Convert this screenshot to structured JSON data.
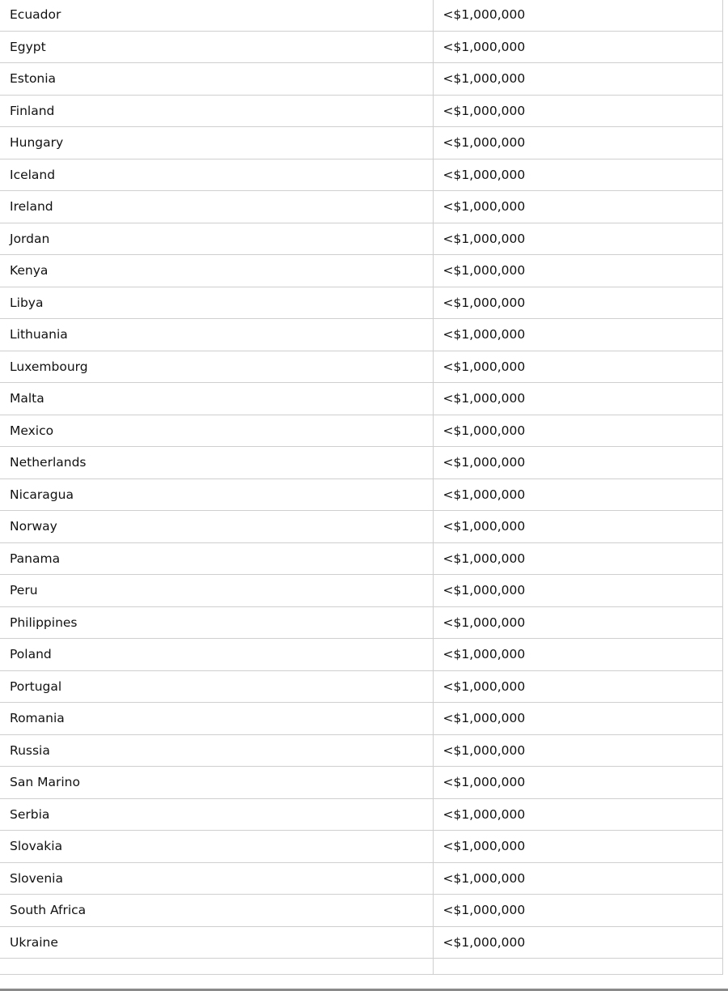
{
  "table": {
    "rows": [
      {
        "country": "Ecuador",
        "value": "<$1,000,000"
      },
      {
        "country": "Egypt",
        "value": "<$1,000,000"
      },
      {
        "country": "Estonia",
        "value": "<$1,000,000"
      },
      {
        "country": "Finland",
        "value": "<$1,000,000"
      },
      {
        "country": "Hungary",
        "value": "<$1,000,000"
      },
      {
        "country": "Iceland",
        "value": "<$1,000,000"
      },
      {
        "country": "Ireland",
        "value": "<$1,000,000"
      },
      {
        "country": "Jordan",
        "value": "<$1,000,000"
      },
      {
        "country": "Kenya",
        "value": "<$1,000,000"
      },
      {
        "country": "Libya",
        "value": "<$1,000,000"
      },
      {
        "country": "Lithuania",
        "value": "<$1,000,000"
      },
      {
        "country": "Luxembourg",
        "value": "<$1,000,000"
      },
      {
        "country": "Malta",
        "value": "<$1,000,000"
      },
      {
        "country": "Mexico",
        "value": "<$1,000,000"
      },
      {
        "country": "Netherlands",
        "value": "<$1,000,000"
      },
      {
        "country": "Nicaragua",
        "value": "<$1,000,000"
      },
      {
        "country": "Norway",
        "value": "<$1,000,000"
      },
      {
        "country": "Panama",
        "value": "<$1,000,000"
      },
      {
        "country": "Peru",
        "value": "<$1,000,000"
      },
      {
        "country": "Philippines",
        "value": "<$1,000,000"
      },
      {
        "country": "Poland",
        "value": "<$1,000,000"
      },
      {
        "country": "Portugal",
        "value": "<$1,000,000"
      },
      {
        "country": "Romania",
        "value": "<$1,000,000"
      },
      {
        "country": "Russia",
        "value": "<$1,000,000"
      },
      {
        "country": "San Marino",
        "value": "<$1,000,000"
      },
      {
        "country": "Serbia",
        "value": "<$1,000,000"
      },
      {
        "country": "Slovakia",
        "value": "<$1,000,000"
      },
      {
        "country": "Slovenia",
        "value": "<$1,000,000"
      },
      {
        "country": "South Africa",
        "value": "<$1,000,000"
      },
      {
        "country": "Ukraine",
        "value": "<$1,000,000"
      }
    ]
  }
}
